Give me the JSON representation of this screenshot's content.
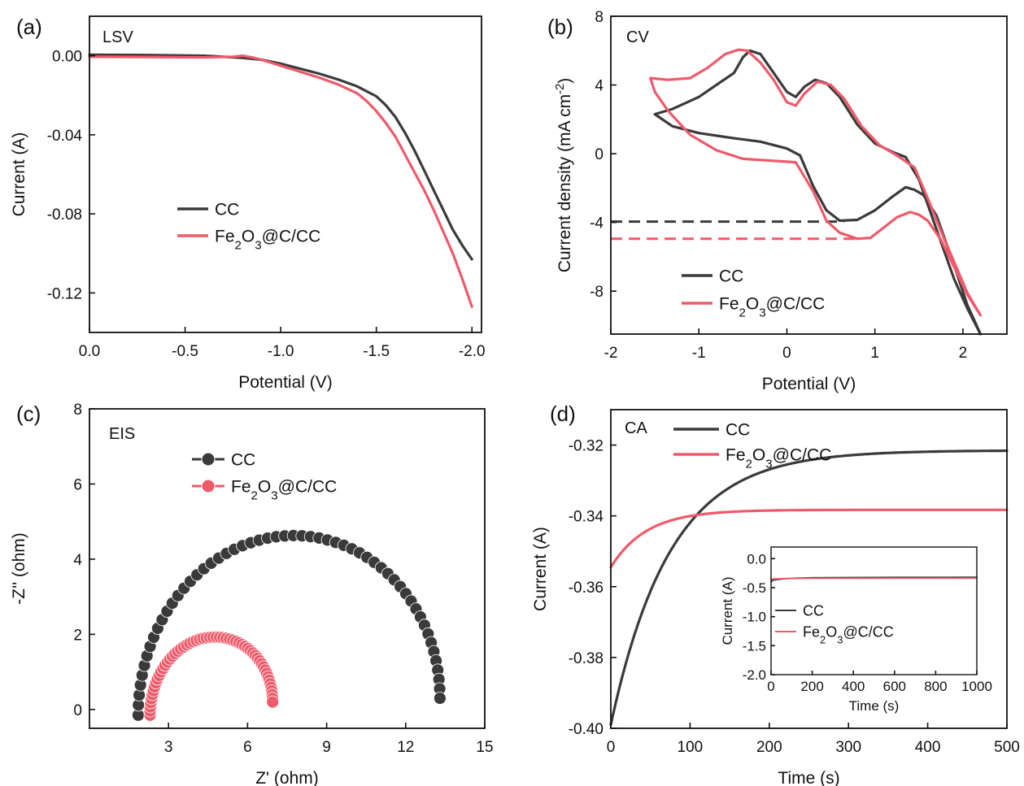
{
  "colors": {
    "cc": "#3a3a3a",
    "fe": "#ef5a6a",
    "axis": "#111111"
  },
  "chart_data": [
    {
      "id": "a",
      "panel_label": "(a)",
      "tag": "LSV",
      "type": "line",
      "xlabel": "Potential (V)",
      "ylabel": "Current (A)",
      "xlim": [
        0,
        -2.05
      ],
      "ylim": [
        -0.14,
        0.02
      ],
      "xticks": [
        0,
        -0.5,
        -1.0,
        -1.5,
        -2.0
      ],
      "xtick_labels": [
        "0.0",
        "-0.5",
        "-1.0",
        "-1.5",
        "-2.0"
      ],
      "yticks": [
        0,
        -0.04,
        -0.08,
        -0.12
      ],
      "ytick_labels": [
        "0.00",
        "-0.04",
        "-0.08",
        "-0.12"
      ],
      "legend": {
        "entries": [
          "CC",
          "Fe2O3@C/CC"
        ],
        "style": "line"
      },
      "series": [
        {
          "name": "CC",
          "color_key": "cc",
          "x": [
            0,
            -0.3,
            -0.6,
            -0.8,
            -0.9,
            -1.0,
            -1.1,
            -1.2,
            -1.3,
            -1.4,
            -1.5,
            -1.55,
            -1.6,
            -1.65,
            -1.7,
            -1.75,
            -1.8,
            -1.85,
            -1.9,
            -1.95,
            -2.0
          ],
          "y": [
            0.0005,
            0.0004,
            0.0,
            -0.001,
            -0.002,
            -0.004,
            -0.0065,
            -0.009,
            -0.012,
            -0.0155,
            -0.0205,
            -0.025,
            -0.031,
            -0.039,
            -0.048,
            -0.058,
            -0.068,
            -0.078,
            -0.088,
            -0.096,
            -0.103
          ]
        },
        {
          "name": "Fe2O3@C/CC",
          "color_key": "fe",
          "x": [
            0,
            -0.3,
            -0.6,
            -0.75,
            -0.8,
            -0.85,
            -0.9,
            -1.0,
            -1.1,
            -1.2,
            -1.3,
            -1.4,
            -1.45,
            -1.5,
            -1.55,
            -1.6,
            -1.65,
            -1.7,
            -1.75,
            -1.8,
            -1.85,
            -1.9,
            -1.95,
            -2.0
          ],
          "y": [
            -0.0005,
            -0.0006,
            -0.0008,
            -0.0005,
            0.0,
            -0.0008,
            -0.002,
            -0.005,
            -0.008,
            -0.011,
            -0.0145,
            -0.019,
            -0.023,
            -0.028,
            -0.034,
            -0.041,
            -0.05,
            -0.059,
            -0.068,
            -0.078,
            -0.089,
            -0.1,
            -0.113,
            -0.127
          ]
        }
      ]
    },
    {
      "id": "b",
      "panel_label": "(b)",
      "tag": "CV",
      "type": "line",
      "xlabel": "Potential (V)",
      "ylabel": "Current density (mA cm-2)",
      "ylabel_main": "Current density (mA cm",
      "ylabel_sup": "-2",
      "ylabel_end": ")",
      "xlim": [
        -2,
        2.5
      ],
      "ylim": [
        -10.5,
        8
      ],
      "xticks": [
        -2,
        -1,
        0,
        1,
        2
      ],
      "xtick_labels": [
        "-2",
        "-1",
        "0",
        "1",
        "2"
      ],
      "yticks": [
        -8,
        -4,
        0,
        4,
        8
      ],
      "ytick_labels": [
        "-8",
        "-4",
        "0",
        "4",
        "8"
      ],
      "legend": {
        "entries": [
          "CC",
          "Fe2O3@C/CC"
        ],
        "style": "line"
      },
      "guides": [
        {
          "color_key": "cc",
          "y": -3.95,
          "x_from": -2,
          "x_to": 0.65
        },
        {
          "color_key": "fe",
          "y": -4.95,
          "x_from": -2,
          "x_to": 0.8
        }
      ],
      "series": [
        {
          "name": "CC",
          "color_key": "cc",
          "x": [
            -1.5,
            -1.3,
            -1.0,
            -0.6,
            -0.5,
            -0.42,
            -0.3,
            -0.15,
            0,
            0.1,
            0.2,
            0.32,
            0.45,
            0.6,
            0.8,
            1.0,
            1.2,
            1.35,
            1.5,
            1.7,
            1.9,
            2.05,
            2.2,
            2.05,
            1.9,
            1.7,
            1.55,
            1.45,
            1.35,
            1.2,
            1.0,
            0.8,
            0.6,
            0.45,
            0.3,
            0.15,
            0,
            -0.3,
            -0.6,
            -1.0,
            -1.3,
            -1.5
          ],
          "y": [
            2.3,
            2.6,
            3.3,
            4.7,
            5.6,
            6.0,
            5.8,
            4.7,
            3.6,
            3.3,
            3.9,
            4.3,
            4.1,
            3.3,
            1.7,
            0.6,
            0.1,
            -0.2,
            -1.5,
            -4.4,
            -7.3,
            -9.0,
            -10.5,
            -8.8,
            -6.5,
            -3.6,
            -2.4,
            -2.1,
            -1.95,
            -2.5,
            -3.3,
            -3.85,
            -3.9,
            -3.3,
            -1.9,
            -0.1,
            0.3,
            0.7,
            0.9,
            1.2,
            1.6,
            2.3
          ]
        },
        {
          "name": "Fe2O3@C/CC",
          "color_key": "fe",
          "x": [
            -1.55,
            -1.35,
            -1.1,
            -0.9,
            -0.7,
            -0.55,
            -0.45,
            -0.3,
            -0.15,
            0,
            0.1,
            0.2,
            0.35,
            0.5,
            0.65,
            0.85,
            1.05,
            1.25,
            1.45,
            1.6,
            1.75,
            1.9,
            2.05,
            2.2,
            2.05,
            1.9,
            1.75,
            1.6,
            1.5,
            1.4,
            1.25,
            1.1,
            0.95,
            0.8,
            0.6,
            0.45,
            0.3,
            0.1,
            -0.2,
            -0.5,
            -0.8,
            -1.1,
            -1.35,
            -1.5,
            -1.55
          ],
          "y": [
            4.4,
            4.3,
            4.4,
            5.0,
            5.8,
            6.05,
            6.0,
            5.3,
            4.3,
            3.0,
            2.8,
            3.5,
            4.2,
            4.0,
            3.2,
            1.6,
            0.5,
            -0.1,
            -0.8,
            -2.6,
            -4.5,
            -6.3,
            -8.1,
            -9.4,
            -8.2,
            -6.6,
            -5.0,
            -3.9,
            -3.55,
            -3.4,
            -3.7,
            -4.3,
            -4.9,
            -4.95,
            -4.6,
            -3.9,
            -2.2,
            -0.5,
            -0.4,
            -0.3,
            0.2,
            1.1,
            2.5,
            3.6,
            4.4
          ]
        }
      ]
    },
    {
      "id": "c",
      "panel_label": "(c)",
      "tag": "EIS",
      "type": "scatter",
      "xlabel": "Z' (ohm)",
      "ylabel": "-Z'' (ohm)",
      "xlim": [
        0,
        15
      ],
      "ylim": [
        -0.5,
        8
      ],
      "xticks": [
        3,
        6,
        9,
        12,
        15
      ],
      "xtick_labels": [
        "3",
        "6",
        "9",
        "12",
        "15"
      ],
      "yticks": [
        0,
        2,
        4,
        6,
        8
      ],
      "ytick_labels": [
        "0",
        "2",
        "4",
        "6",
        "8"
      ],
      "legend": {
        "entries": [
          "CC",
          "Fe2O3@C/CC"
        ],
        "style": "ball"
      },
      "series": [
        {
          "name": "CC",
          "color_key": "cc",
          "arc": {
            "x_start": 1.85,
            "x_end": 13.3,
            "height": 4.55,
            "start_y": -0.15,
            "end_y": 0.3,
            "n": 56
          }
        },
        {
          "name": "Fe2O3@C/CC",
          "color_key": "fe",
          "arc": {
            "x_start": 2.3,
            "x_end": 6.95,
            "height": 1.9,
            "start_y": -0.15,
            "end_y": 0.2,
            "n": 58
          }
        }
      ]
    },
    {
      "id": "d",
      "panel_label": "(d)",
      "tag": "CA",
      "type": "line",
      "xlabel": "Time (s)",
      "ylabel": "Current (A)",
      "xlim": [
        0,
        500
      ],
      "ylim": [
        -0.4,
        -0.31
      ],
      "xticks": [
        0,
        100,
        200,
        300,
        400,
        500
      ],
      "xtick_labels": [
        "0",
        "100",
        "200",
        "300",
        "400",
        "500"
      ],
      "yticks": [
        -0.4,
        -0.38,
        -0.36,
        -0.34,
        -0.32
      ],
      "ytick_labels": [
        "-0.40",
        "-0.38",
        "-0.36",
        "-0.34",
        "-0.32"
      ],
      "legend": {
        "entries": [
          "CC",
          "Fe2O3@C/CC"
        ],
        "style": "line"
      },
      "series": [
        {
          "name": "CC",
          "color_key": "cc",
          "model": {
            "plateau": -0.3215,
            "initial": -0.399,
            "tau": 75
          }
        },
        {
          "name": "Fe2O3@C/CC",
          "color_key": "fe",
          "model": {
            "plateau": -0.3383,
            "initial": -0.3545,
            "tau": 45
          }
        }
      ],
      "inset": {
        "type": "line",
        "xlabel": "Time (s)",
        "ylabel": "Current (A)",
        "xlim": [
          0,
          1000
        ],
        "ylim": [
          -2.0,
          0.2
        ],
        "xticks": [
          0,
          200,
          400,
          600,
          800,
          1000
        ],
        "xtick_labels": [
          "0",
          "200",
          "400",
          "600",
          "800",
          "1000"
        ],
        "yticks": [
          0,
          -0.5,
          -1.0,
          -1.5,
          -2.0
        ],
        "ytick_labels": [
          "0.0",
          "-0.5",
          "-1.0",
          "-1.5",
          "-2.0"
        ],
        "legend": {
          "entries": [
            "CC",
            "Fe2O3@C/CC"
          ],
          "style": "line"
        },
        "series": [
          {
            "name": "CC",
            "color_key": "cc",
            "x": [
              0,
              10,
              50,
              100,
              200,
              400,
              600,
              800,
              1000
            ],
            "y": [
              -0.4,
              -0.37,
              -0.35,
              -0.34,
              -0.33,
              -0.325,
              -0.323,
              -0.322,
              -0.321
            ]
          },
          {
            "name": "Fe2O3@C/CC",
            "color_key": "fe",
            "x": [
              0,
              10,
              50,
              100,
              200,
              400,
              600,
              800,
              1000
            ],
            "y": [
              -0.355,
              -0.35,
              -0.345,
              -0.342,
              -0.34,
              -0.339,
              -0.338,
              -0.338,
              -0.338
            ]
          }
        ]
      }
    }
  ]
}
